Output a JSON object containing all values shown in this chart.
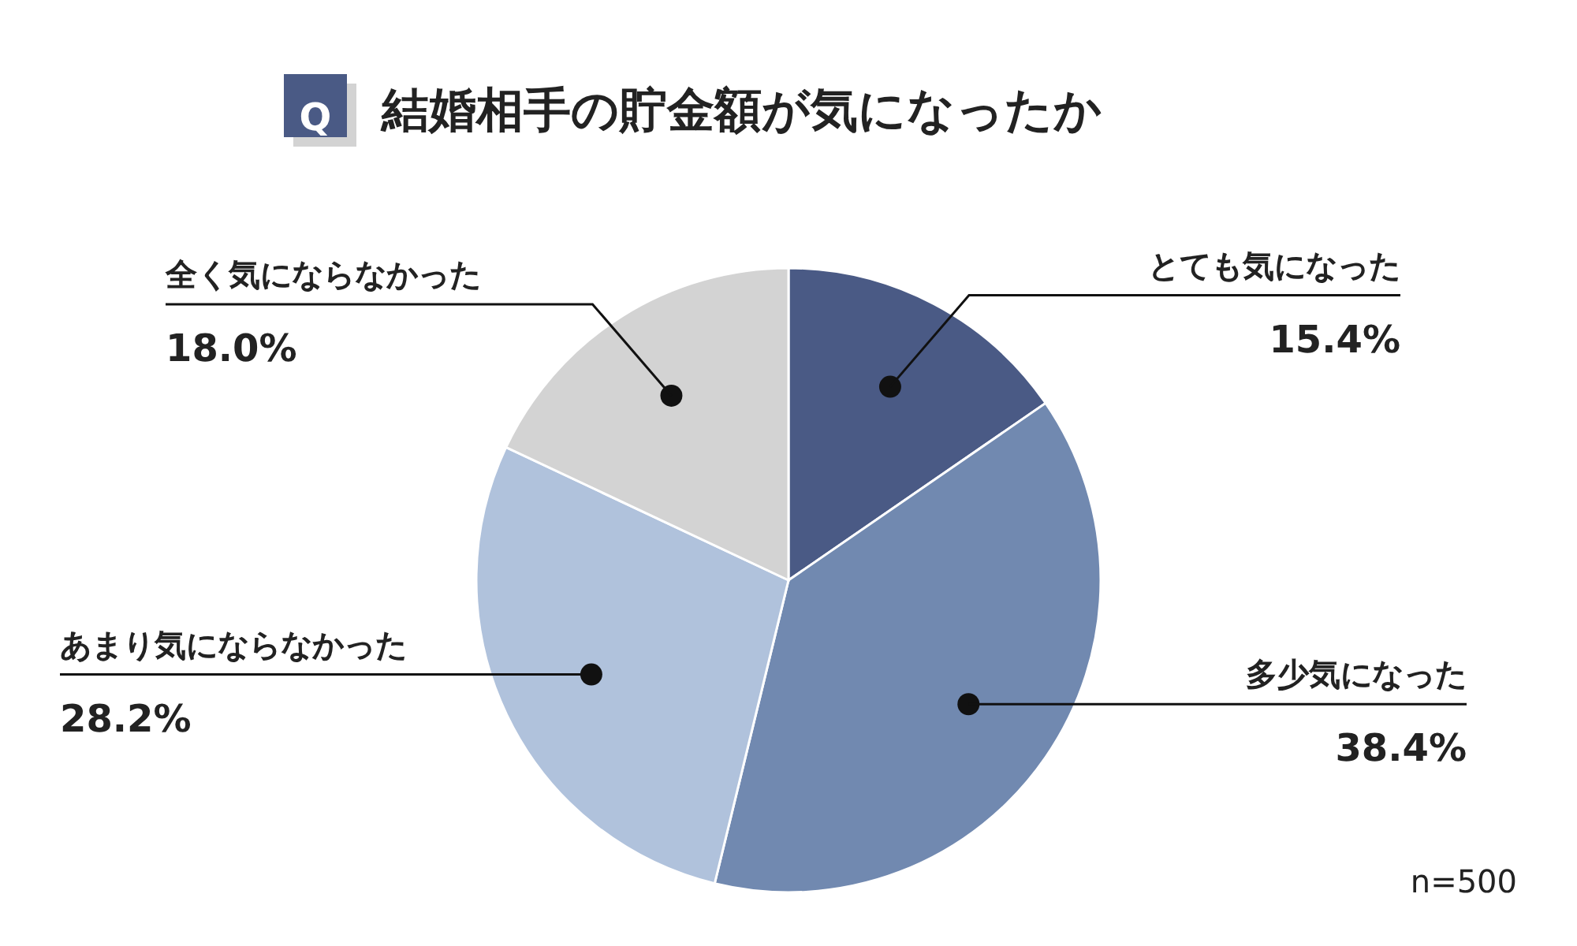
{
  "chart_data": {
    "type": "pie",
    "title": "結婚相手の貯金額が気になったか",
    "categories": [
      "とても気になった",
      "多少気になった",
      "あまり気にならなかった",
      "全く気にならなかった"
    ],
    "values": [
      15.4,
      38.4,
      28.2,
      18.0
    ],
    "value_labels": [
      "15.4%",
      "38.4%",
      "28.2%",
      "18.0%"
    ],
    "colors": [
      "#4a5a85",
      "#7189b0",
      "#b0c2dc",
      "#d3d3d3"
    ],
    "annotations": [
      "Q",
      "n=500"
    ]
  }
}
